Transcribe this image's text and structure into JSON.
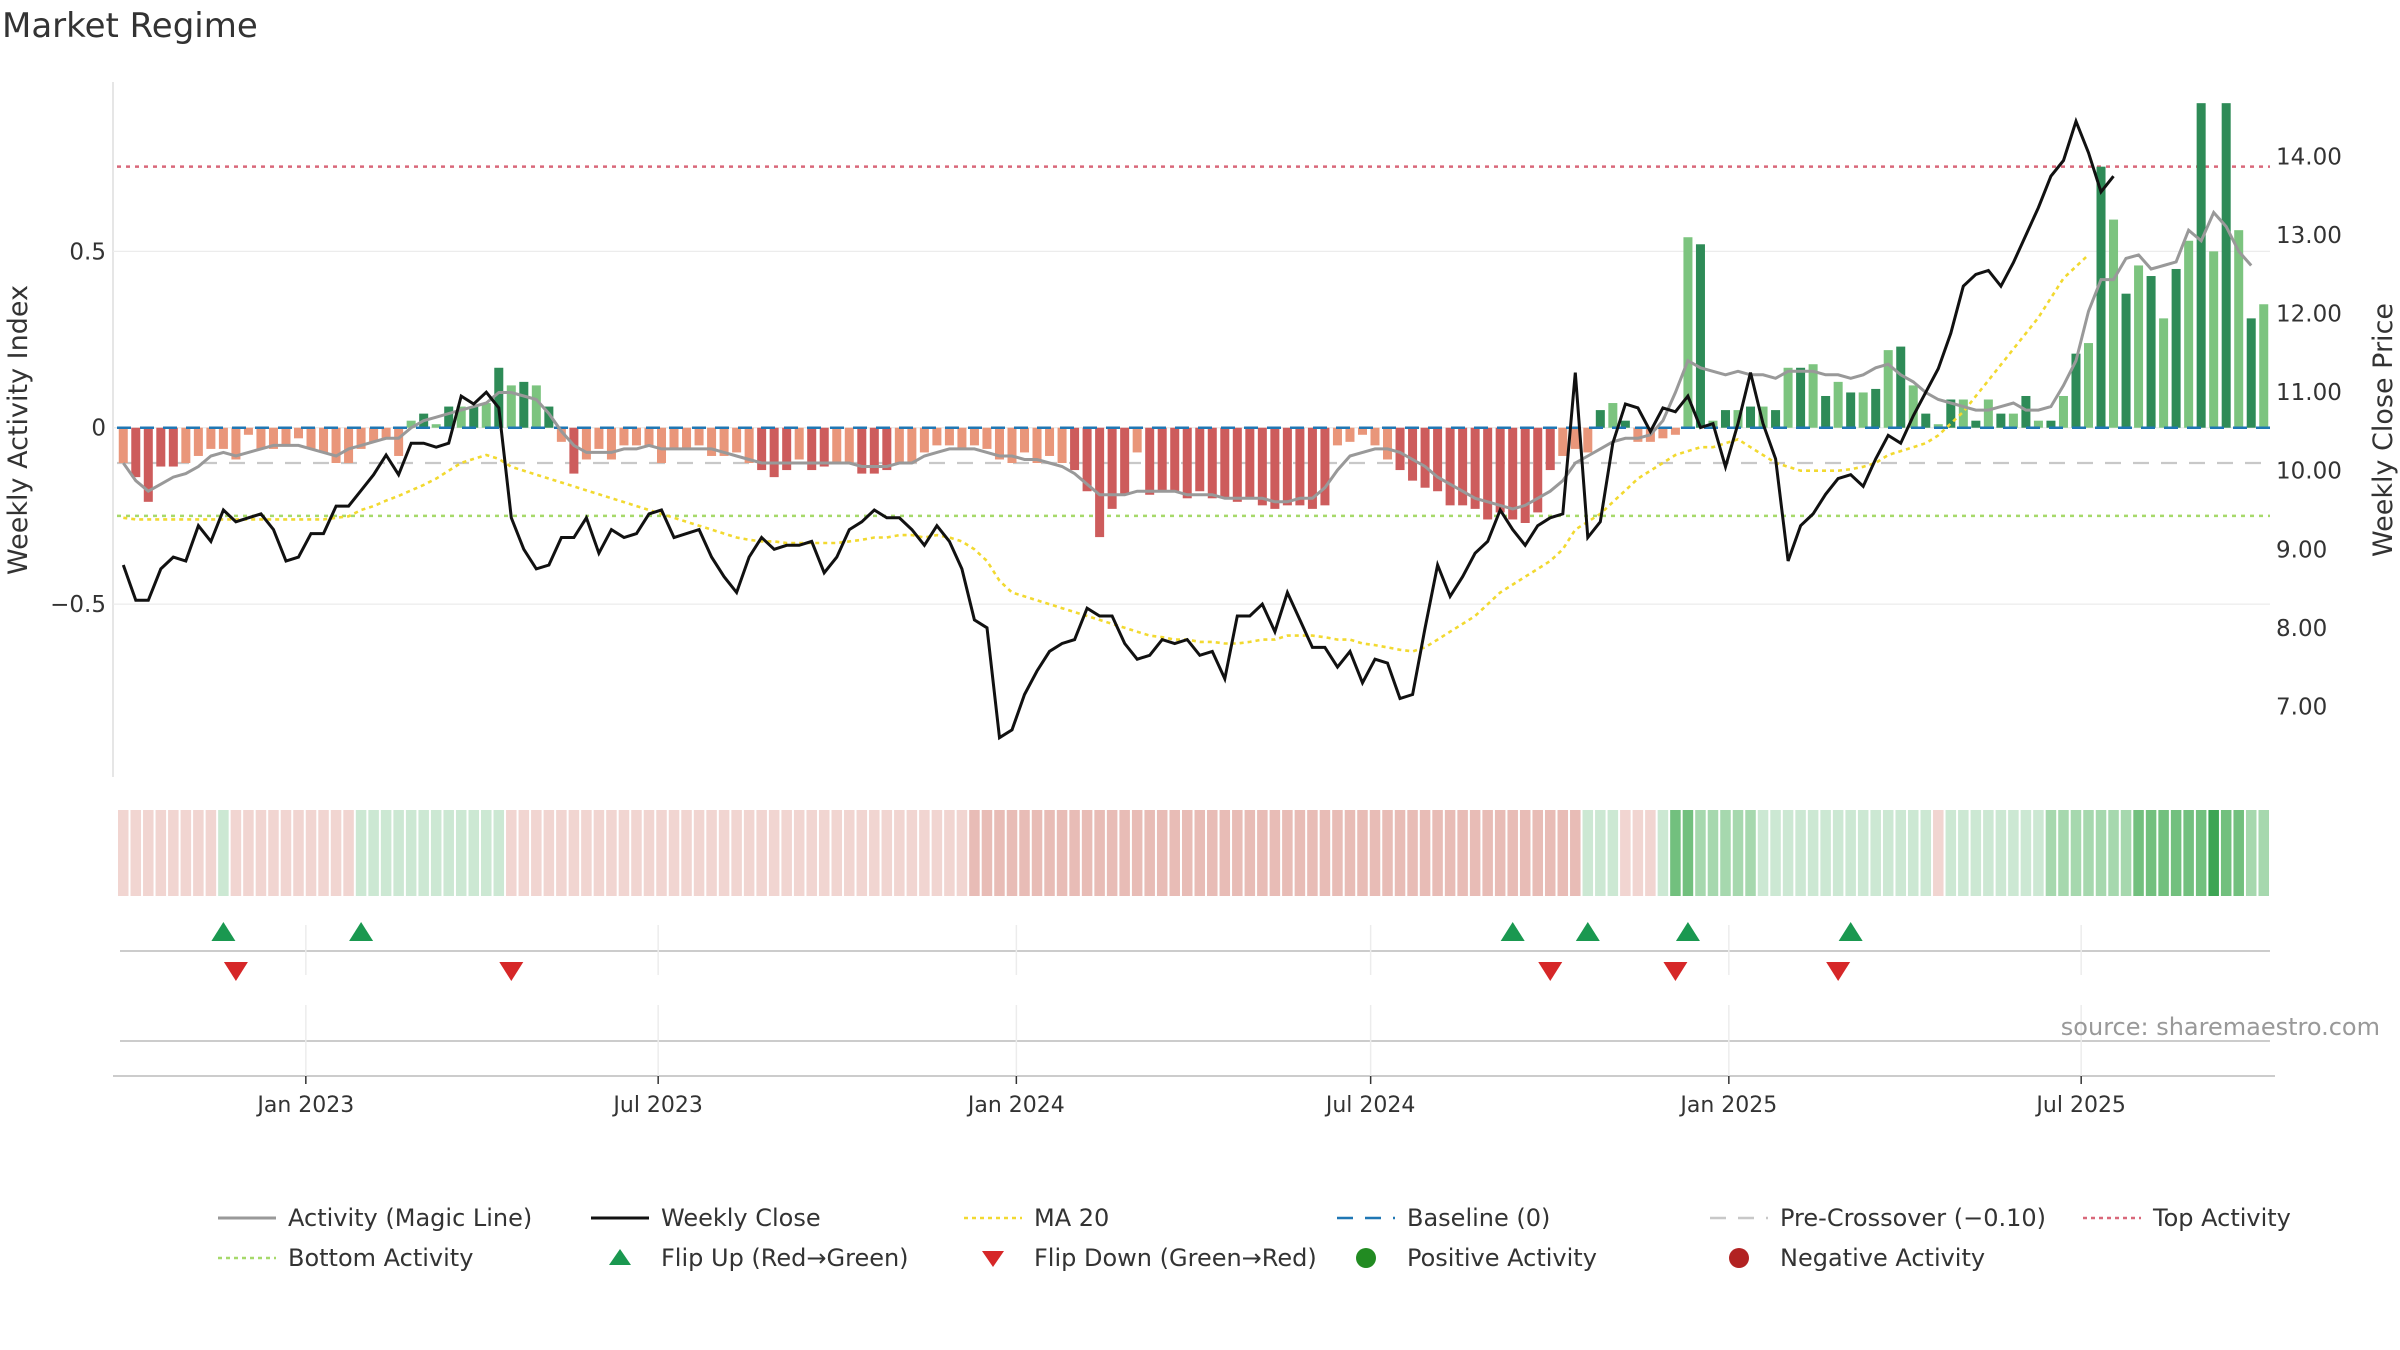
{
  "title": "Market Regime",
  "source": "source: sharemaestro.com",
  "colors": {
    "pos_dark": "#2e8b57",
    "pos_light": "#7cc47f",
    "neg_dark": "#cd5c5c",
    "neg_light": "#e9967a",
    "magic": "#999999",
    "close": "#111111",
    "ma20": "#f2d930",
    "baseline": "#1f77b4",
    "precross": "#c8c8c8",
    "top": "#d9687a",
    "bottom": "#a6d96a",
    "flip_up": "#1a9850",
    "flip_down": "#d62728"
  },
  "legend": [
    {
      "label": "Activity (Magic Line)",
      "kind": "line-solid",
      "color": "#999999"
    },
    {
      "label": "Weekly Close",
      "kind": "line-solid",
      "color": "#111111"
    },
    {
      "label": "MA 20",
      "kind": "line-dotted",
      "color": "#f2d930"
    },
    {
      "label": "Baseline (0)",
      "kind": "line-dashed",
      "color": "#1f77b4"
    },
    {
      "label": "Pre-Crossover (−0.10)",
      "kind": "line-dashed",
      "color": "#c8c8c8"
    },
    {
      "label": "Top Activity",
      "kind": "line-dotted",
      "color": "#d9687a"
    },
    {
      "label": "Bottom Activity",
      "kind": "line-dotted",
      "color": "#a6d96a"
    },
    {
      "label": "Flip Up (Red→Green)",
      "kind": "triangle-up",
      "color": "#1a9850"
    },
    {
      "label": "Flip Down (Green→Red)",
      "kind": "triangle-down",
      "color": "#d62728"
    },
    {
      "label": "Positive Activity",
      "kind": "dot",
      "color": "#228b22"
    },
    {
      "label": "Negative Activity",
      "kind": "dot",
      "color": "#b22222"
    }
  ],
  "chart_data": {
    "type": "bar",
    "title": "Market Regime",
    "x_start": "2022-09-26",
    "x_end": "2025-10-06",
    "x_tick_labels": [
      "Jan 2023",
      "Jul 2023",
      "Jan 2024",
      "Jul 2024",
      "Jan 2025",
      "Jul 2025"
    ],
    "x_tick_dates": [
      "2023-01-01",
      "2023-07-01",
      "2024-01-01",
      "2024-07-01",
      "2025-01-01",
      "2025-07-01"
    ],
    "left_axis": {
      "label": "Weekly Activity Index",
      "ylim": [
        -0.99,
        0.98
      ],
      "ticks": [
        -0.5,
        0,
        0.5
      ],
      "tick_labels": [
        "−0.5",
        "0",
        "0.5"
      ]
    },
    "right_axis": {
      "label": "Weekly Close Price",
      "ylim": [
        6.1,
        14.95
      ],
      "ticks": [
        7,
        8,
        9,
        10,
        11,
        12,
        13,
        14
      ],
      "tick_labels": [
        "7.00",
        "8.00",
        "9.00",
        "10.00",
        "11.00",
        "12.00",
        "13.00",
        "14.00"
      ]
    },
    "reference_lines": {
      "top_activity": 0.74,
      "bottom_activity": -0.25,
      "baseline": 0,
      "pre_crossover": -0.1
    },
    "gaps": [
      [
        2024,
        6
      ],
      [
        2024,
        7
      ]
    ],
    "activity": [
      -0.1,
      -0.14,
      -0.21,
      -0.11,
      -0.11,
      -0.1,
      -0.08,
      -0.06,
      -0.06,
      -0.09,
      -0.02,
      -0.06,
      -0.06,
      -0.05,
      -0.03,
      -0.06,
      -0.07,
      -0.1,
      -0.1,
      -0.06,
      -0.04,
      -0.03,
      -0.08,
      0.02,
      0.04,
      0.01,
      0.06,
      0.06,
      0.06,
      0.07,
      0.17,
      0.12,
      0.13,
      0.12,
      0.06,
      -0.04,
      -0.13,
      -0.09,
      -0.06,
      -0.09,
      -0.05,
      -0.05,
      -0.05,
      -0.1,
      -0.06,
      -0.06,
      -0.05,
      -0.08,
      -0.08,
      -0.07,
      -0.1,
      -0.12,
      -0.14,
      -0.12,
      -0.09,
      -0.12,
      -0.11,
      -0.1,
      -0.1,
      -0.13,
      -0.13,
      -0.12,
      -0.1,
      -0.1,
      -0.07,
      -0.05,
      -0.05,
      -0.06,
      -0.05,
      -0.06,
      -0.09,
      -0.1,
      -0.07,
      -0.1,
      -0.08,
      -0.1,
      -0.12,
      -0.18,
      -0.31,
      -0.23,
      -0.19,
      -0.07,
      -0.19,
      -0.18,
      -0.18,
      -0.2,
      -0.18,
      -0.2,
      -0.2,
      -0.21,
      -0.2,
      -0.22,
      -0.23,
      -0.22,
      -0.22,
      -0.23,
      -0.22,
      -0.05,
      -0.04,
      -0.02,
      -0.05,
      -0.09,
      -0.12,
      -0.15,
      -0.17,
      -0.18,
      -0.22,
      -0.22,
      -0.23,
      -0.26,
      -0.24,
      -0.26,
      -0.27,
      -0.24,
      -0.12,
      -0.08,
      -0.06,
      -0.07,
      0.05,
      0.07,
      0.02,
      -0.04,
      -0.04,
      -0.03,
      -0.02,
      0.54,
      0.52,
      0.02,
      0.05,
      0.05,
      0.06,
      0.06,
      0.05,
      0.17,
      0.17,
      0.18,
      0.09,
      0.13,
      0.1,
      0.1,
      0.11,
      0.22,
      0.23,
      0.12,
      0.04,
      0.01,
      0.08,
      0.08,
      0.02,
      0.08,
      0.04,
      0.04,
      0.09,
      0.02,
      0.02,
      0.09,
      0.21,
      0.24,
      0.74,
      0.59,
      0.38,
      0.46,
      0.43,
      0.31,
      0.45,
      0.53,
      0.92,
      0.5,
      0.92,
      0.56,
      0.31,
      0.35
    ],
    "magic_line": [
      -0.1,
      -0.15,
      -0.18,
      -0.16,
      -0.14,
      -0.13,
      -0.11,
      -0.08,
      -0.07,
      -0.08,
      -0.07,
      -0.06,
      -0.05,
      -0.05,
      -0.05,
      -0.06,
      -0.07,
      -0.08,
      -0.06,
      -0.05,
      -0.04,
      -0.03,
      -0.03,
      0.0,
      0.02,
      0.03,
      0.04,
      0.05,
      0.06,
      0.07,
      0.1,
      0.1,
      0.09,
      0.08,
      0.04,
      -0.01,
      -0.05,
      -0.07,
      -0.07,
      -0.07,
      -0.06,
      -0.06,
      -0.05,
      -0.06,
      -0.06,
      -0.06,
      -0.06,
      -0.06,
      -0.07,
      -0.08,
      -0.09,
      -0.1,
      -0.1,
      -0.1,
      -0.1,
      -0.1,
      -0.1,
      -0.1,
      -0.1,
      -0.11,
      -0.11,
      -0.11,
      -0.1,
      -0.1,
      -0.08,
      -0.07,
      -0.06,
      -0.06,
      -0.06,
      -0.07,
      -0.08,
      -0.08,
      -0.09,
      -0.09,
      -0.1,
      -0.11,
      -0.13,
      -0.16,
      -0.19,
      -0.19,
      -0.19,
      -0.18,
      -0.18,
      -0.18,
      -0.18,
      -0.19,
      -0.19,
      -0.19,
      -0.2,
      -0.2,
      -0.2,
      -0.2,
      -0.21,
      -0.21,
      -0.2,
      -0.2,
      -0.17,
      -0.12,
      -0.08,
      -0.07,
      -0.06,
      -0.06,
      -0.07,
      -0.09,
      -0.11,
      -0.14,
      -0.16,
      -0.18,
      -0.2,
      -0.21,
      -0.22,
      -0.23,
      -0.22,
      -0.2,
      -0.18,
      -0.15,
      -0.1,
      -0.08,
      -0.06,
      -0.04,
      -0.03,
      -0.03,
      -0.02,
      0.02,
      0.1,
      0.19,
      0.17,
      0.16,
      0.15,
      0.16,
      0.15,
      0.15,
      0.14,
      0.16,
      0.16,
      0.16,
      0.15,
      0.15,
      0.14,
      0.15,
      0.17,
      0.18,
      0.15,
      0.13,
      0.1,
      0.08,
      0.07,
      0.06,
      0.05,
      0.05,
      0.06,
      0.07,
      0.05,
      0.05,
      0.06,
      0.12,
      0.19,
      0.33,
      0.42,
      0.42,
      0.48,
      0.49,
      0.45,
      0.46,
      0.47,
      0.56,
      0.53,
      0.61,
      0.57,
      0.5,
      0.46
    ],
    "weekly_close": [
      8.8,
      8.35,
      8.35,
      8.75,
      8.9,
      8.85,
      9.3,
      9.1,
      9.5,
      9.35,
      9.4,
      9.45,
      9.25,
      8.85,
      8.9,
      9.2,
      9.2,
      9.55,
      9.55,
      9.75,
      9.95,
      10.2,
      9.95,
      10.35,
      10.35,
      10.3,
      10.35,
      10.95,
      10.85,
      11.0,
      10.8,
      9.4,
      9.0,
      8.75,
      8.8,
      9.15,
      9.15,
      9.4,
      8.95,
      9.25,
      9.15,
      9.2,
      9.45,
      9.5,
      9.15,
      9.2,
      9.25,
      8.9,
      8.65,
      8.45,
      8.9,
      9.15,
      9.0,
      9.05,
      9.05,
      9.1,
      8.7,
      8.9,
      9.25,
      9.35,
      9.5,
      9.4,
      9.4,
      9.25,
      9.05,
      9.3,
      9.1,
      8.75,
      8.1,
      8.0,
      6.6,
      6.7,
      7.15,
      7.45,
      7.7,
      7.8,
      7.85,
      8.25,
      8.15,
      8.15,
      7.8,
      7.6,
      7.65,
      7.85,
      7.8,
      7.85,
      7.65,
      7.7,
      7.35,
      8.15,
      8.15,
      8.3,
      7.95,
      8.45,
      8.1,
      7.75,
      7.75,
      7.5,
      7.7,
      7.3,
      7.6,
      7.55,
      7.1,
      7.15,
      8.0,
      8.8,
      8.4,
      8.65,
      8.95,
      9.1,
      9.5,
      9.25,
      9.05,
      9.3,
      9.4,
      9.45,
      11.25,
      9.15,
      9.35,
      10.35,
      10.85,
      10.8,
      10.5,
      10.8,
      10.75,
      10.95,
      10.55,
      10.6,
      10.05,
      10.6,
      11.25,
      10.6,
      10.15,
      8.85,
      9.3,
      9.45,
      9.7,
      9.9,
      9.95,
      9.8,
      10.15,
      10.45,
      10.35,
      10.7,
      11.0,
      11.3,
      11.75,
      12.35,
      12.5,
      12.55,
      12.35,
      12.65,
      13.0,
      13.35,
      13.75,
      13.95,
      14.45,
      14.05,
      13.55,
      13.75
    ],
    "ma20": [
      9.4,
      9.38,
      9.38,
      9.38,
      9.38,
      9.38,
      9.38,
      9.38,
      9.38,
      9.38,
      9.38,
      9.38,
      9.38,
      9.38,
      9.38,
      9.38,
      9.38,
      9.4,
      9.42,
      9.5,
      9.55,
      9.62,
      9.68,
      9.75,
      9.82,
      9.9,
      10.0,
      10.1,
      10.15,
      10.2,
      10.15,
      10.05,
      10.0,
      9.95,
      9.9,
      9.85,
      9.8,
      9.75,
      9.7,
      9.65,
      9.6,
      9.55,
      9.5,
      9.45,
      9.4,
      9.35,
      9.3,
      9.25,
      9.2,
      9.15,
      9.12,
      9.1,
      9.1,
      9.08,
      9.08,
      9.08,
      9.08,
      9.08,
      9.1,
      9.12,
      9.15,
      9.15,
      9.18,
      9.18,
      9.15,
      9.18,
      9.15,
      9.1,
      9.0,
      8.85,
      8.6,
      8.45,
      8.4,
      8.35,
      8.3,
      8.25,
      8.2,
      8.15,
      8.1,
      8.05,
      8.0,
      7.95,
      7.9,
      7.88,
      7.85,
      7.85,
      7.82,
      7.82,
      7.8,
      7.8,
      7.82,
      7.85,
      7.85,
      7.9,
      7.9,
      7.9,
      7.88,
      7.85,
      7.85,
      7.8,
      7.78,
      7.75,
      7.72,
      7.7,
      7.75,
      7.85,
      7.95,
      8.05,
      8.15,
      8.3,
      8.45,
      8.55,
      8.65,
      8.75,
      8.85,
      9.0,
      9.25,
      9.35,
      9.45,
      9.6,
      9.75,
      9.9,
      10.0,
      10.1,
      10.2,
      10.25,
      10.3,
      10.3,
      10.35,
      10.4,
      10.3,
      10.2,
      10.1,
      10.05,
      10.0,
      10.0,
      10.0,
      10.0,
      10.02,
      10.05,
      10.1,
      10.2,
      10.25,
      10.3,
      10.35,
      10.45,
      10.6,
      10.75,
      10.95,
      11.15,
      11.35,
      11.55,
      11.75,
      11.95,
      12.2,
      12.45,
      12.6,
      12.75
    ],
    "regime_strip": [
      -1,
      -1,
      -1,
      -1,
      -1,
      -1,
      -1,
      -1,
      1,
      -1,
      -1,
      -1,
      -1,
      -1,
      -1,
      -1,
      -1,
      -1,
      -1,
      1,
      1,
      1,
      1,
      1,
      1,
      1,
      1,
      1,
      1,
      1,
      1,
      -1,
      -1,
      -1,
      -1,
      -1,
      -1,
      -1,
      -1,
      -1,
      -1,
      -1,
      -1,
      -1,
      -1,
      -1,
      -1,
      -1,
      -1,
      -1,
      -1,
      -1,
      -1,
      -1,
      -1,
      -1,
      -1,
      -1,
      -1,
      -1,
      -1,
      -1,
      -1,
      -1,
      -1,
      -1,
      -1,
      -1,
      -2,
      -2,
      -2,
      -2,
      -2,
      -2,
      -2,
      -2,
      -2,
      -2,
      -2,
      -2,
      -2,
      -2,
      -2,
      -2,
      -2,
      -2,
      -2,
      -2,
      -2,
      -2,
      -2,
      -2,
      -2,
      -2,
      -2,
      -2,
      -2,
      -2,
      -2,
      -2,
      -2,
      -2,
      -2,
      -2,
      -2,
      -2,
      -2,
      -2,
      -2,
      -2,
      -2,
      -2,
      -2,
      -2,
      -2,
      -2,
      -2,
      1,
      1,
      1,
      -1,
      -1,
      -1,
      1,
      3,
      3,
      2,
      2,
      2,
      2,
      2,
      1,
      1,
      1,
      1,
      1,
      1,
      1,
      1,
      1,
      1,
      1,
      1,
      1,
      1,
      -1,
      1,
      1,
      1,
      1,
      1,
      1,
      1,
      1,
      2,
      2,
      2,
      2,
      2,
      2,
      2,
      3,
      3,
      3,
      3,
      3,
      3,
      4,
      3,
      3,
      2,
      2
    ],
    "flip_up_weeks": [
      8,
      19,
      111,
      117,
      125,
      138
    ],
    "flip_down_weeks": [
      9,
      31,
      114,
      124,
      137
    ]
  }
}
